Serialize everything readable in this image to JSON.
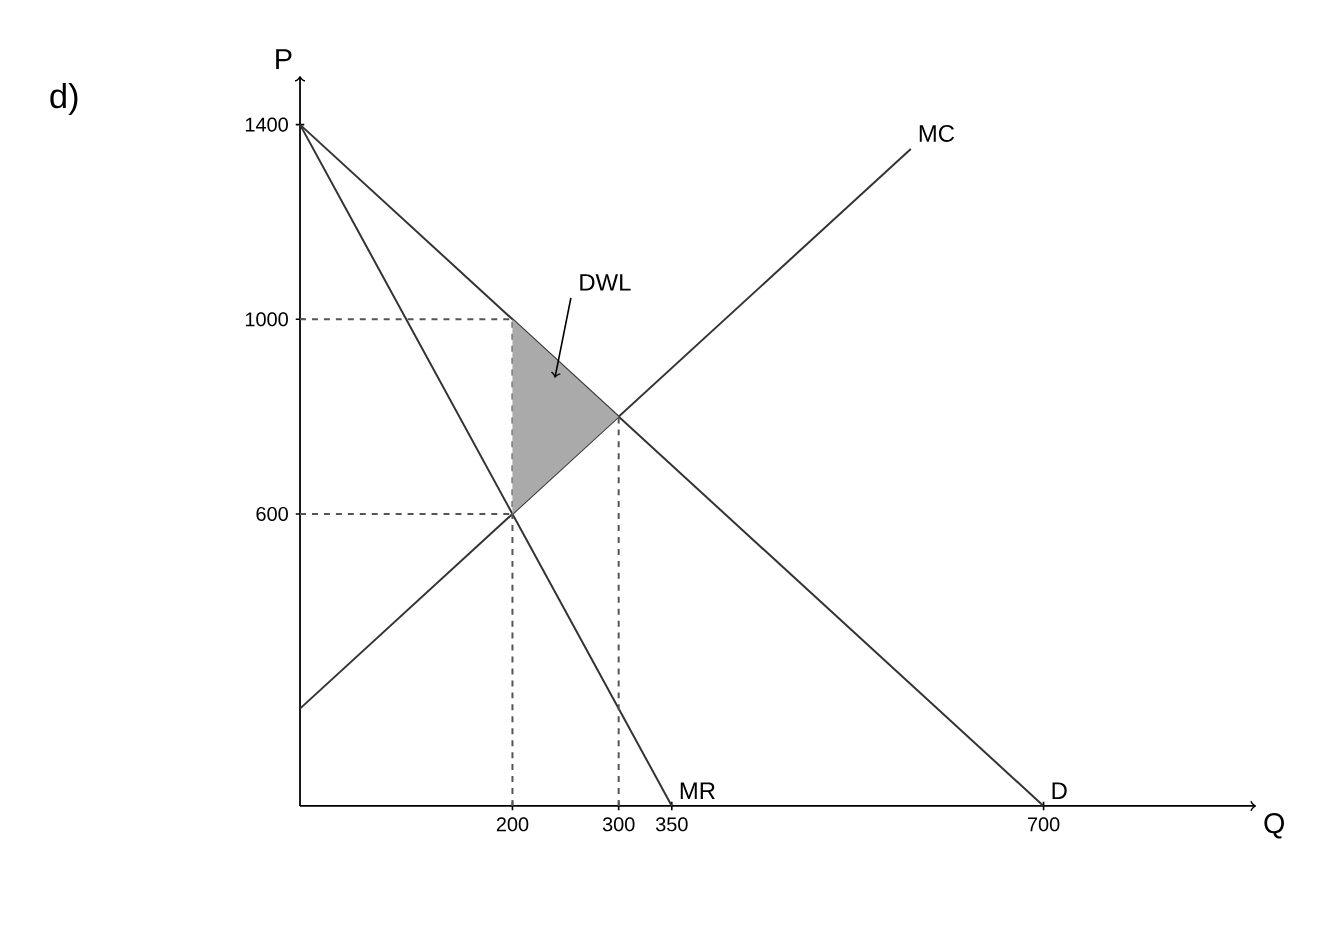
{
  "chart_data": {
    "type": "line",
    "title": "d)",
    "xlabel": "Q",
    "ylabel": "P",
    "xlim": [
      0,
      900
    ],
    "ylim": [
      0,
      1500
    ],
    "xticks": [
      200,
      300,
      350,
      700
    ],
    "yticks": [
      600,
      1000,
      1400
    ],
    "series": [
      {
        "name": "MC",
        "color": "#333333",
        "x": [
          0,
          575
        ],
        "values": [
          200,
          1350
        ],
        "line_style": "solid"
      },
      {
        "name": "MR",
        "color": "#333333",
        "x": [
          0,
          350
        ],
        "values": [
          1400,
          0
        ],
        "line_style": "solid"
      },
      {
        "name": "D",
        "color": "#333333",
        "x": [
          0,
          700
        ],
        "values": [
          1400,
          0
        ],
        "line_style": "solid"
      },
      {
        "color": "#555555",
        "x": [
          0,
          200
        ],
        "values": [
          1000,
          1000
        ],
        "line_style": "dashed"
      },
      {
        "color": "#555555",
        "x": [
          0,
          200
        ],
        "values": [
          600,
          600
        ],
        "line_style": "dashed"
      },
      {
        "color": "#555555",
        "x": [
          200,
          200
        ],
        "values": [
          0,
          1000
        ],
        "line_style": "dashed"
      },
      {
        "color": "#555555",
        "x": [
          300,
          300
        ],
        "values": [
          0,
          800
        ],
        "line_style": "dashed"
      },
      {
        "type": "area",
        "color": "#aaaaaa",
        "x": [
          200,
          200,
          300
        ],
        "values": [
          600,
          1000,
          800
        ]
      }
    ],
    "annotations": [
      {
        "text": "DWL",
        "x": 240,
        "y": 880
      }
    ]
  }
}
